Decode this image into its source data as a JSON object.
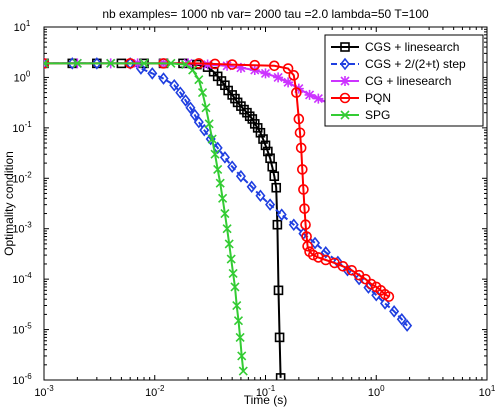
{
  "chart_data": {
    "type": "line",
    "title": "nb examples= 1000  nb var= 2000  tau =2.0 lambda=50 T=100",
    "xlabel": "Time (s)",
    "ylabel": "Optimality condition",
    "xscale": "log",
    "yscale": "log",
    "xlim": [
      0.001,
      10
    ],
    "ylim": [
      1e-06,
      10
    ],
    "xticks": [
      {
        "base": "10",
        "exp": "-3"
      },
      {
        "base": "10",
        "exp": "-2"
      },
      {
        "base": "10",
        "exp": "-1"
      },
      {
        "base": "10",
        "exp": "0"
      },
      {
        "base": "10",
        "exp": "1"
      }
    ],
    "yticks": [
      {
        "base": "10",
        "exp": "-6"
      },
      {
        "base": "10",
        "exp": "-5"
      },
      {
        "base": "10",
        "exp": "-4"
      },
      {
        "base": "10",
        "exp": "-3"
      },
      {
        "base": "10",
        "exp": "-2"
      },
      {
        "base": "10",
        "exp": "-1"
      },
      {
        "base": "10",
        "exp": "0"
      },
      {
        "base": "10",
        "exp": "1"
      }
    ],
    "legend_position": "top-right",
    "series": [
      {
        "name": "CGS + linesearch",
        "color": "#000000",
        "marker": "square",
        "x": [
          0.001,
          0.0018,
          0.003,
          0.005,
          0.008,
          0.012,
          0.018,
          0.024,
          0.03,
          0.034,
          0.037,
          0.04,
          0.043,
          0.046,
          0.05,
          0.053,
          0.056,
          0.06,
          0.064,
          0.068,
          0.072,
          0.076,
          0.08,
          0.085,
          0.09,
          0.095,
          0.1,
          0.105,
          0.11,
          0.115,
          0.12,
          0.125,
          0.128,
          0.131,
          0.134,
          0.137
        ],
        "y": [
          1.9,
          1.9,
          1.9,
          1.9,
          1.9,
          1.9,
          1.9,
          1.8,
          1.6,
          1.3,
          1.05,
          0.85,
          0.7,
          0.55,
          0.45,
          0.38,
          0.32,
          0.27,
          0.23,
          0.2,
          0.17,
          0.15,
          0.12,
          0.1,
          0.08,
          0.06,
          0.045,
          0.034,
          0.025,
          0.017,
          0.011,
          0.0065,
          0.0012,
          6e-05,
          7e-06,
          1.1e-06
        ]
      },
      {
        "name": "CGS + 2/(2+t) step",
        "color": "#1f3fe0",
        "marker": "diamond",
        "x": [
          0.001,
          0.0018,
          0.003,
          0.006,
          0.0075,
          0.0095,
          0.012,
          0.015,
          0.017,
          0.019,
          0.021,
          0.023,
          0.025,
          0.028,
          0.032,
          0.037,
          0.043,
          0.05,
          0.06,
          0.075,
          0.09,
          0.11,
          0.14,
          0.18,
          0.22,
          0.28,
          0.35,
          0.45,
          0.55,
          0.7,
          0.85,
          1.0,
          1.2,
          1.45,
          1.7,
          1.9
        ],
        "y": [
          1.9,
          1.9,
          1.9,
          1.9,
          1.5,
          1.2,
          0.95,
          0.7,
          0.5,
          0.35,
          0.25,
          0.18,
          0.13,
          0.09,
          0.06,
          0.04,
          0.026,
          0.017,
          0.011,
          0.0068,
          0.0045,
          0.003,
          0.0019,
          0.0012,
          0.0008,
          0.00052,
          0.00034,
          0.00022,
          0.00015,
          0.0001,
          6.8e-05,
          4.8e-05,
          3.3e-05,
          2.3e-05,
          1.6e-05,
          1.2e-05
        ]
      },
      {
        "name": "CG + linesearch",
        "color": "#cc33ff",
        "marker": "star",
        "x": [
          0.001,
          0.002,
          0.004,
          0.007,
          0.012,
          0.02,
          0.03,
          0.045,
          0.06,
          0.08,
          0.1,
          0.13,
          0.16,
          0.2,
          0.25,
          0.3,
          0.38,
          0.45,
          0.55,
          0.65,
          0.8,
          0.95,
          1.1,
          1.3,
          1.5,
          1.7,
          1.9
        ],
        "y": [
          1.9,
          1.9,
          1.9,
          1.9,
          1.9,
          1.9,
          1.8,
          1.7,
          1.55,
          1.4,
          1.2,
          1.0,
          0.8,
          0.6,
          0.45,
          0.38,
          0.3,
          0.27,
          0.24,
          0.22,
          0.2,
          0.19,
          0.18,
          0.18,
          0.17,
          0.17,
          0.17
        ]
      },
      {
        "name": "PQN",
        "color": "#ff0000",
        "marker": "circle",
        "x": [
          0.001,
          0.006,
          0.012,
          0.025,
          0.035,
          0.05,
          0.08,
          0.12,
          0.16,
          0.18,
          0.19,
          0.2,
          0.205,
          0.21,
          0.215,
          0.22,
          0.225,
          0.23,
          0.235,
          0.24,
          0.25,
          0.27,
          0.3,
          0.35,
          0.42,
          0.5,
          0.6,
          0.7,
          0.8,
          0.9,
          1.0,
          1.1,
          1.2,
          1.3
        ],
        "y": [
          1.9,
          1.9,
          1.9,
          1.9,
          1.85,
          1.8,
          1.75,
          1.7,
          1.5,
          1.1,
          0.5,
          0.15,
          0.08,
          0.04,
          0.015,
          0.006,
          0.0025,
          0.0012,
          0.0007,
          0.00045,
          0.00035,
          0.0003,
          0.00027,
          0.00024,
          0.00021,
          0.00018,
          0.00015,
          0.00012,
          0.0001,
          8e-05,
          7e-05,
          6e-05,
          5e-05,
          4.5e-05
        ]
      },
      {
        "name": "SPG",
        "color": "#33cc33",
        "marker": "x",
        "x": [
          0.001,
          0.002,
          0.004,
          0.008,
          0.014,
          0.019,
          0.022,
          0.025,
          0.027,
          0.029,
          0.031,
          0.033,
          0.035,
          0.037,
          0.039,
          0.041,
          0.043,
          0.045,
          0.047,
          0.049,
          0.051,
          0.053,
          0.055,
          0.057,
          0.059,
          0.061,
          0.063
        ],
        "y": [
          1.9,
          1.9,
          1.9,
          1.9,
          1.9,
          1.8,
          1.4,
          0.9,
          0.5,
          0.25,
          0.12,
          0.06,
          0.03,
          0.015,
          0.008,
          0.004,
          0.002,
          0.001,
          0.0005,
          0.00025,
          0.00013,
          7e-05,
          3e-05,
          1.5e-05,
          7e-06,
          3e-06,
          1.5e-06
        ]
      }
    ]
  }
}
